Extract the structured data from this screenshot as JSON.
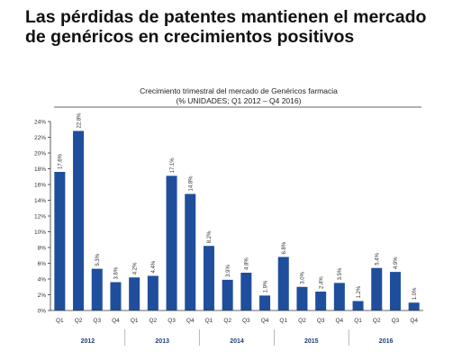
{
  "slide": {
    "headline": "Las pérdidas de patentes mantienen el mercado de genéricos en crecimientos positivos"
  },
  "chart_data": {
    "type": "bar",
    "title": "Crecimiento trimestral del mercado de Genéricos farmacia",
    "subtitle": "(% UNIDADES; Q1 2012 – Q4 2016)",
    "xlabel": "",
    "ylabel": "",
    "ylim": [
      0,
      24
    ],
    "y_ticks": [
      0,
      2,
      4,
      6,
      8,
      10,
      12,
      14,
      16,
      18,
      20,
      22,
      24
    ],
    "y_tick_suffix": "%",
    "categories": [
      "Q1",
      "Q2",
      "Q3",
      "Q4",
      "Q1",
      "Q2",
      "Q3",
      "Q4",
      "Q1",
      "Q2",
      "Q3",
      "Q4",
      "Q1",
      "Q2",
      "Q3",
      "Q4",
      "Q1",
      "Q2",
      "Q3",
      "Q4"
    ],
    "years": [
      "2012",
      "2013",
      "2014",
      "2015",
      "2016"
    ],
    "values": [
      17.6,
      22.8,
      5.3,
      3.6,
      4.2,
      4.4,
      17.1,
      14.8,
      8.2,
      3.9,
      4.8,
      1.9,
      6.8,
      3.0,
      2.4,
      3.5,
      1.2,
      5.4,
      4.9,
      1.0
    ],
    "data_labels": [
      "17.6%",
      "22.8%",
      "5.3%",
      "3.6%",
      "4.2%",
      "4.4%",
      "17.1%",
      "14.8%",
      "8.2%",
      "3.9%",
      "4.8%",
      "1.9%",
      "6.8%",
      "3.0%",
      "2.4%",
      "3.5%",
      "1.2%",
      "5.4%",
      "4.9%",
      "1.0%"
    ],
    "bar_color": "#1f4e9c",
    "grid": false,
    "legend": "none"
  }
}
